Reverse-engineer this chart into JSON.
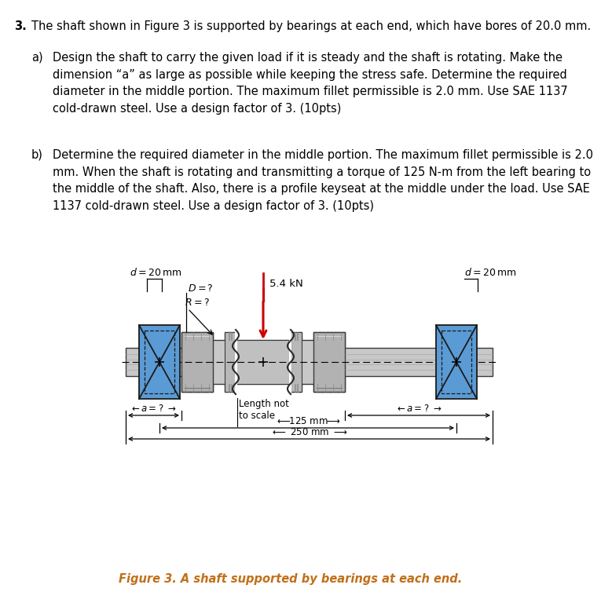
{
  "bg_color": "#ffffff",
  "text_color": "#000000",
  "caption_color": "#c0701a",
  "bearing_color": "#5b9bd5",
  "title_num": "3.",
  "title_text": "The shaft shown in Figure 3 is supported by bearings at each end, which have bores of 20.0 mm.",
  "part_a_label": "a)",
  "part_a_text": "Design the shaft to carry the given load if it is steady and the shaft is rotating. Make the\ndimension “a” as large as possible while keeping the stress safe. Determine the required\ndiameter in the middle portion. The maximum fillet permissible is 2.0 mm. Use SAE 1137\ncold-drawn steel. Use a design factor of 3. (10pts)",
  "part_b_label": "b)",
  "part_b_text": "Determine the required diameter in the middle portion. The maximum fillet permissible is 2.0\nmm. When the shaft is rotating and transmitting a torque of 125 N-m from the left bearing to\nthe middle of the shaft. Also, there is a profile keyseat at the middle under the load. Use SAE\n1137 cold-drawn steel. Use a design factor of 3. (10pts)",
  "figure_caption": "Figure 3. A shaft supported by bearings at each end.",
  "shaft_gray1": "#d4d4d4",
  "shaft_gray2": "#b0b0b0",
  "shaft_gray3": "#909090",
  "shaft_dark": "#484848",
  "load_arrow_color": "#cc0000",
  "dim_line_color": "#1a1a1a"
}
